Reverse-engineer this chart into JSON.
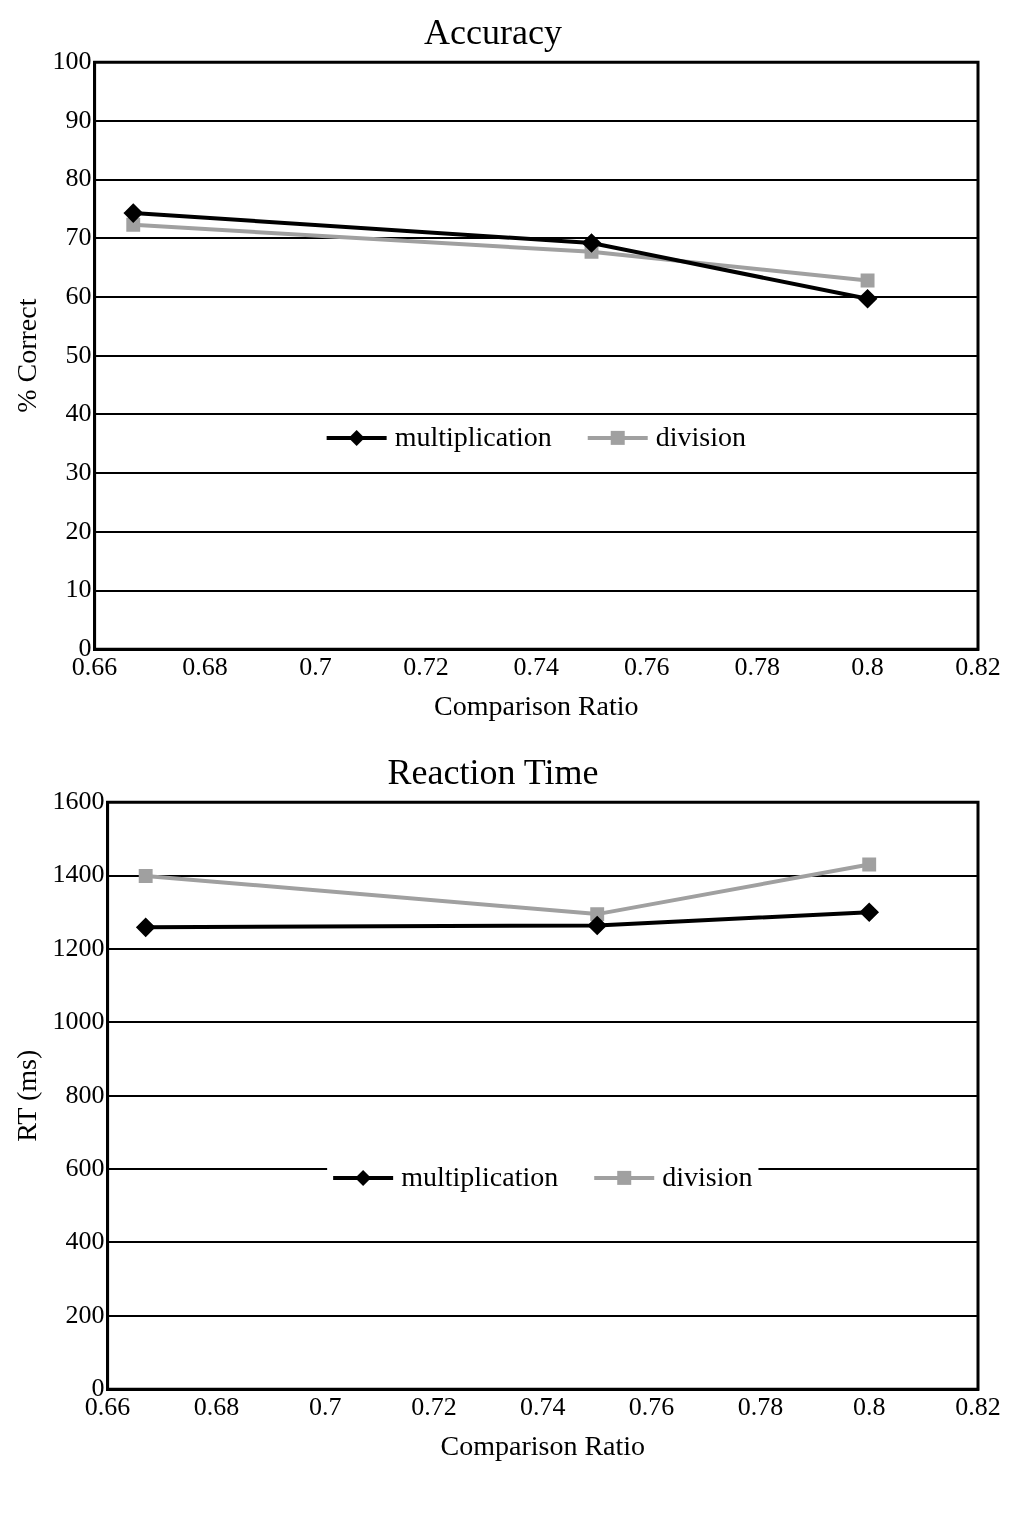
{
  "chart_data": [
    {
      "type": "line",
      "title": "Accuracy",
      "xlabel": "Comparison Ratio",
      "ylabel": "% Correct",
      "x": [
        0.667,
        0.75,
        0.8
      ],
      "series": [
        {
          "name": "multiplication",
          "color": "#000000",
          "marker": "diamond",
          "values": [
            74.3,
            69.2,
            59.7
          ]
        },
        {
          "name": "division",
          "color": "#a0a0a0",
          "marker": "square",
          "values": [
            72.3,
            67.7,
            62.8
          ]
        }
      ],
      "xlim": [
        0.66,
        0.82
      ],
      "xticks": [
        0.66,
        0.68,
        0.7,
        0.72,
        0.74,
        0.76,
        0.78,
        0.8,
        0.82
      ],
      "ylim": [
        0,
        100
      ],
      "yticks": [
        0,
        10,
        20,
        30,
        40,
        50,
        60,
        70,
        80,
        90,
        100
      ],
      "grid": "y",
      "legend": "center"
    },
    {
      "type": "line",
      "title": "Reaction Time",
      "xlabel": "Comparison Ratio",
      "ylabel": "RT (ms)",
      "x": [
        0.667,
        0.75,
        0.8
      ],
      "series": [
        {
          "name": "multiplication",
          "color": "#000000",
          "marker": "diamond",
          "values": [
            1259,
            1264,
            1300
          ]
        },
        {
          "name": "division",
          "color": "#a0a0a0",
          "marker": "square",
          "values": [
            1399,
            1295,
            1430
          ]
        }
      ],
      "xlim": [
        0.66,
        0.82
      ],
      "xticks": [
        0.66,
        0.68,
        0.7,
        0.72,
        0.74,
        0.76,
        0.78,
        0.8,
        0.82
      ],
      "ylim": [
        0,
        1600
      ],
      "yticks": [
        0,
        200,
        400,
        600,
        800,
        1000,
        1200,
        1400,
        1600
      ],
      "grid": "y",
      "legend": "center"
    }
  ]
}
